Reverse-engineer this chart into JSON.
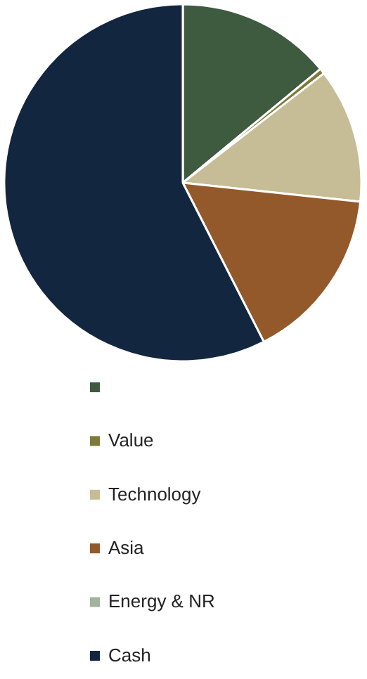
{
  "chart_data": {
    "type": "pie",
    "categories": [
      null,
      "Value",
      "Technology",
      "Asia",
      "Energy & NR",
      "Cash"
    ],
    "values": [
      14,
      0.5,
      12.2,
      15.8,
      0,
      57.5
    ],
    "colors": [
      "#3e5a3f",
      "#7d7a3c",
      "#c6bd97",
      "#93592a",
      "#a0b59c",
      "#13263f"
    ],
    "legend": "bottom"
  }
}
